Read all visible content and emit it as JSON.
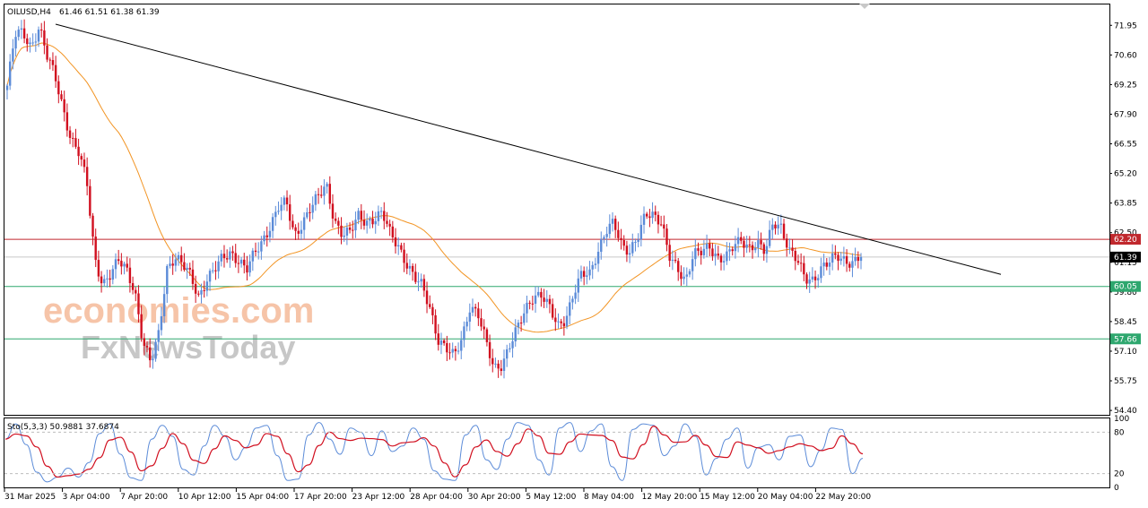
{
  "header": {
    "symbol": "OILUSD,H4",
    "ohlc": "61.46 61.51 61.38 61.39"
  },
  "watermark": {
    "line1": "economies.com",
    "line2": "FxNewsToday",
    "color1": "#f6c4a8",
    "color2": "#c7c7c7"
  },
  "price_axis": {
    "ticks": [
      "71.95",
      "70.60",
      "69.25",
      "67.90",
      "66.55",
      "65.20",
      "63.85",
      "62.50",
      "61.15",
      "59.80",
      "58.45",
      "57.10",
      "55.75",
      "54.40"
    ],
    "tick_values": [
      71.95,
      70.6,
      69.25,
      67.9,
      66.55,
      65.2,
      63.85,
      62.5,
      61.15,
      59.8,
      58.45,
      57.1,
      55.75,
      54.4
    ],
    "range": [
      54.2,
      72.9
    ]
  },
  "levels": [
    {
      "name": "resistance",
      "value": 62.2,
      "label": "62.20",
      "color": "#c0282d"
    },
    {
      "name": "current-price",
      "value": 61.39,
      "label": "61.39",
      "color": "#000000"
    },
    {
      "name": "support-1",
      "value": 60.05,
      "label": "60.05",
      "color": "#2ea76e"
    },
    {
      "name": "support-2",
      "value": 57.66,
      "label": "57.66",
      "color": "#2ea76e"
    }
  ],
  "time_axis": {
    "labels": [
      "31 Mar 2025",
      "3 Apr 04:00",
      "7 Apr 20:00",
      "10 Apr 12:00",
      "15 Apr 04:00",
      "17 Apr 20:00",
      "23 Apr 12:00",
      "28 Apr 04:00",
      "30 Apr 20:00",
      "5 May 12:00",
      "8 May 04:00",
      "12 May 20:00",
      "15 May 12:00",
      "20 May 04:00",
      "22 May 20:00"
    ]
  },
  "stochastic": {
    "label": "Sto(5,3,3) 50.9881 37.6874",
    "levels": [
      "100",
      "80",
      "20",
      "0"
    ],
    "main_color": "#5b8bd8",
    "signal_color": "#d10f1f"
  },
  "chart_data": {
    "type": "candlestick",
    "title": "OILUSD,H4",
    "xlabel": "",
    "ylabel": "",
    "ylim": [
      54.4,
      71.95
    ],
    "trendline": {
      "from": {
        "x": "3 Apr 04:00",
        "y": 72.0
      },
      "to": {
        "x": "end",
        "y": 60.6
      },
      "color": "#000000"
    },
    "moving_average": {
      "color": "#f29423"
    },
    "bull_color": "#5b8bd8",
    "bear_color": "#d10f1f",
    "close_path": [
      69.2,
      71.5,
      71.6,
      71.0,
      71.9,
      70.5,
      69.6,
      68.2,
      66.8,
      66.1,
      64.7,
      61.3,
      60.2,
      60.6,
      61.2,
      60.8,
      59.9,
      57.5,
      56.5,
      57.9,
      60.9,
      61.4,
      61.0,
      60.5,
      59.6,
      60.4,
      60.8,
      61.3,
      61.6,
      61.3,
      60.8,
      61.5,
      62.1,
      62.9,
      63.7,
      63.8,
      62.3,
      63.0,
      63.7,
      64.1,
      64.6,
      63.1,
      62.5,
      62.5,
      63.2,
      63.0,
      63.2,
      63.4,
      62.4,
      61.9,
      61.2,
      60.5,
      60.0,
      59.0,
      57.7,
      57.3,
      56.8,
      57.6,
      59.2,
      58.9,
      57.5,
      56.2,
      56.5,
      57.5,
      58.2,
      58.9,
      59.6,
      59.8,
      59.1,
      58.1,
      58.5,
      59.9,
      60.7,
      60.5,
      61.5,
      62.7,
      63.1,
      61.8,
      61.5,
      62.4,
      63.5,
      63.2,
      62.8,
      61.5,
      61.0,
      60.2,
      61.4,
      61.7,
      62.0,
      61.3,
      61.2,
      61.9,
      62.3,
      61.8,
      61.9,
      61.6,
      63.1,
      62.8,
      61.6,
      61.2,
      60.5,
      60.4,
      60.8,
      61.1,
      61.5,
      61.3,
      61.1,
      61.39
    ],
    "stoch_path": [
      70,
      92,
      62,
      22,
      8,
      15,
      28,
      15,
      36,
      78,
      92,
      48,
      14,
      10,
      70,
      90,
      74,
      26,
      18,
      60,
      90,
      74,
      40,
      58,
      86,
      90,
      46,
      10,
      12,
      76,
      94,
      70,
      48,
      86,
      80,
      46,
      82,
      52,
      60,
      86,
      70,
      24,
      12,
      10,
      76,
      90,
      40,
      26,
      70,
      94,
      90,
      40,
      18,
      86,
      94,
      52,
      82,
      92,
      30,
      10,
      84,
      92,
      90,
      46,
      60,
      92,
      74,
      18,
      42,
      70,
      86,
      28,
      58,
      62,
      40,
      74,
      76,
      30,
      54,
      86,
      84,
      20,
      42
    ]
  }
}
